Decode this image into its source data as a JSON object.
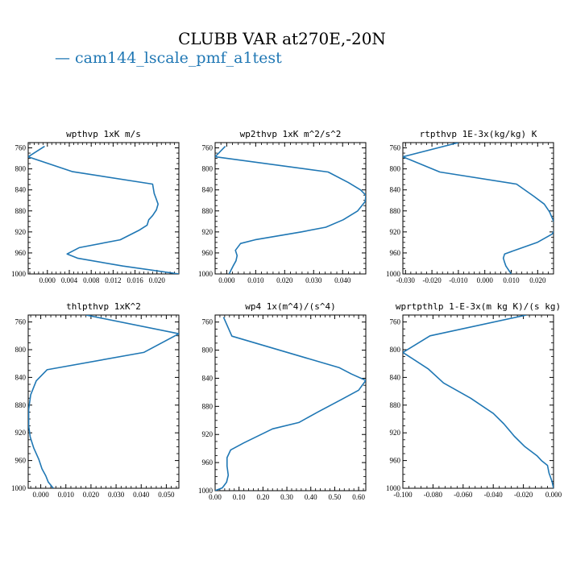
{
  "figure": {
    "title": "CLUBB VAR at270E,-20N",
    "legend_label": "— cam144_lscale_pmf_a1test",
    "series_color": "#1f77b4"
  },
  "chart_data": [
    {
      "type": "line",
      "title": "wpthvp  1xK m/s",
      "xlim": [
        -0.0035,
        0.024
      ],
      "ylim": [
        1000,
        750
      ],
      "xticks": [
        0.0,
        0.004,
        0.008,
        0.012,
        0.016,
        0.02
      ],
      "xtick_labels": [
        "0.000",
        "0.004",
        "0.008",
        "0.012",
        "0.016",
        "0.020"
      ],
      "yticks": [
        760,
        800,
        840,
        880,
        920,
        960,
        1000
      ],
      "ytick_labels": [
        "760",
        "800",
        "840",
        "880",
        "920",
        "960",
        "1000"
      ],
      "series": [
        {
          "x": [
            -0.0005,
            -0.0035,
            0.0045,
            0.0192,
            0.0195,
            0.0198,
            0.0202,
            0.0199,
            0.0192,
            0.0185,
            0.0182,
            0.0167,
            0.0133,
            0.0058,
            0.0036,
            0.0055,
            0.0138,
            0.024
          ],
          "y": [
            757,
            777,
            805,
            829,
            847,
            855,
            867,
            878,
            889,
            897,
            907,
            917,
            935,
            950,
            962,
            970,
            985,
            1000
          ]
        }
      ]
    },
    {
      "type": "line",
      "title": "wp2thvp  1xK m^2/s^2",
      "xlim": [
        -0.004,
        0.048
      ],
      "ylim": [
        1000,
        750
      ],
      "xticks": [
        0.0,
        0.01,
        0.02,
        0.03,
        0.04
      ],
      "xtick_labels": [
        "0.000",
        "0.010",
        "0.020",
        "0.030",
        "0.040"
      ],
      "yticks": [
        760,
        800,
        840,
        880,
        920,
        960,
        1000
      ],
      "ytick_labels": [
        "760",
        "800",
        "840",
        "880",
        "920",
        "960",
        "1000"
      ],
      "series": [
        {
          "x": [
            -0.0005,
            -0.004,
            0.035,
            0.042,
            0.0462,
            0.048,
            0.0478,
            0.0452,
            0.0402,
            0.0342,
            0.0258,
            0.0098,
            0.0048,
            0.003,
            0.0036,
            0.0032,
            0.0022,
            0.0008
          ],
          "y": [
            757,
            777,
            806,
            826,
            840,
            850,
            862,
            880,
            897,
            911,
            920,
            935,
            942,
            955,
            965,
            975,
            985,
            1000
          ]
        }
      ]
    },
    {
      "type": "line",
      "title": "rtpthvp  1E-3x(kg/kg) K",
      "xlim": [
        -0.031,
        0.026
      ],
      "ylim": [
        1000,
        750
      ],
      "xticks": [
        -0.03,
        -0.02,
        -0.01,
        0.0,
        0.01,
        0.02
      ],
      "xtick_labels": [
        "-0.030",
        "-0.020",
        "-0.010",
        "0.000",
        "0.010",
        "0.020"
      ],
      "yticks": [
        760,
        800,
        840,
        880,
        920,
        960,
        1000
      ],
      "ytick_labels": [
        "760",
        "800",
        "840",
        "880",
        "920",
        "960",
        "1000"
      ],
      "series": [
        {
          "x": [
            -0.01,
            -0.031,
            -0.017,
            0.012,
            0.0185,
            0.0225,
            0.0245,
            0.0262,
            0.0265,
            0.0255,
            0.0198,
            0.013,
            0.0075,
            0.007,
            0.0075,
            0.008,
            0.01
          ],
          "y": [
            750,
            777,
            806,
            829,
            852,
            867,
            882,
            902,
            915,
            924,
            940,
            952,
            962,
            970,
            978,
            985,
            1000
          ]
        }
      ]
    },
    {
      "type": "line",
      "title": "thlpthvp  1xK^2",
      "xlim": [
        -0.005,
        0.055
      ],
      "ylim": [
        1000,
        750
      ],
      "xticks": [
        0.0,
        0.01,
        0.02,
        0.03,
        0.04,
        0.05
      ],
      "xtick_labels": [
        "0.000",
        "0.010",
        "0.020",
        "0.030",
        "0.040",
        "0.050"
      ],
      "yticks": [
        760,
        800,
        840,
        880,
        920,
        960,
        1000
      ],
      "ytick_labels": [
        "760",
        "800",
        "840",
        "880",
        "920",
        "960",
        "1000"
      ],
      "series": [
        {
          "x": [
            0.018,
            0.055,
            0.041,
            0.0025,
            -0.0018,
            -0.004,
            -0.0048,
            -0.0048,
            -0.0042,
            -0.0028,
            -0.0008,
            0.0005,
            0.002,
            0.003,
            0.005
          ],
          "y": [
            750,
            777,
            804,
            829,
            845,
            865,
            886,
            910,
            926,
            942,
            958,
            972,
            982,
            991,
            1000
          ]
        }
      ]
    },
    {
      "type": "line",
      "title": "wp4  1x(m^4)/(s^4)",
      "xlim": [
        0.0,
        0.63
      ],
      "ylim": [
        1000,
        750
      ],
      "xticks": [
        0.0,
        0.1,
        0.2,
        0.3,
        0.4,
        0.5,
        0.6
      ],
      "xtick_labels": [
        "0.00",
        "0.10",
        "0.20",
        "0.30",
        "0.40",
        "0.50",
        "0.60"
      ],
      "yticks": [
        760,
        800,
        840,
        880,
        920,
        960,
        1000
      ],
      "ytick_labels": [
        "760",
        "800",
        "840",
        "880",
        "920",
        "960",
        "1000"
      ],
      "series": [
        {
          "x": [
            0.035,
            0.07,
            0.52,
            0.57,
            0.63,
            0.6,
            0.53,
            0.43,
            0.35,
            0.24,
            0.12,
            0.065,
            0.05,
            0.05,
            0.055,
            0.048,
            0.03,
            0.0
          ],
          "y": [
            753,
            780,
            825,
            834,
            843,
            857,
            870,
            888,
            903,
            912,
            932,
            942,
            953,
            965,
            978,
            988,
            996,
            1000
          ]
        }
      ]
    },
    {
      "type": "line",
      "title": "wprtpthlp  1-E-3x(m kg K)/(s kg)",
      "xlim": [
        -0.1,
        0.0
      ],
      "ylim": [
        1000,
        750
      ],
      "xticks": [
        -0.1,
        -0.08,
        -0.06,
        -0.04,
        -0.02,
        0.0
      ],
      "xtick_labels": [
        "-0.100",
        "-0.080",
        "-0.060",
        "-0.040",
        "-0.020",
        "0.000"
      ],
      "yticks": [
        760,
        800,
        840,
        880,
        920,
        960,
        1000
      ],
      "ytick_labels": [
        "760",
        "800",
        "840",
        "880",
        "920",
        "960",
        "1000"
      ],
      "series": [
        {
          "x": [
            -0.018,
            -0.082,
            -0.1,
            -0.083,
            -0.073,
            -0.055,
            -0.04,
            -0.033,
            -0.026,
            -0.019,
            -0.011,
            -0.008,
            -0.004,
            -0.003,
            -0.001,
            0.0
          ],
          "y": [
            750,
            780,
            804,
            828,
            848,
            870,
            892,
            907,
            925,
            940,
            953,
            960,
            967,
            978,
            990,
            1000
          ]
        }
      ]
    }
  ]
}
